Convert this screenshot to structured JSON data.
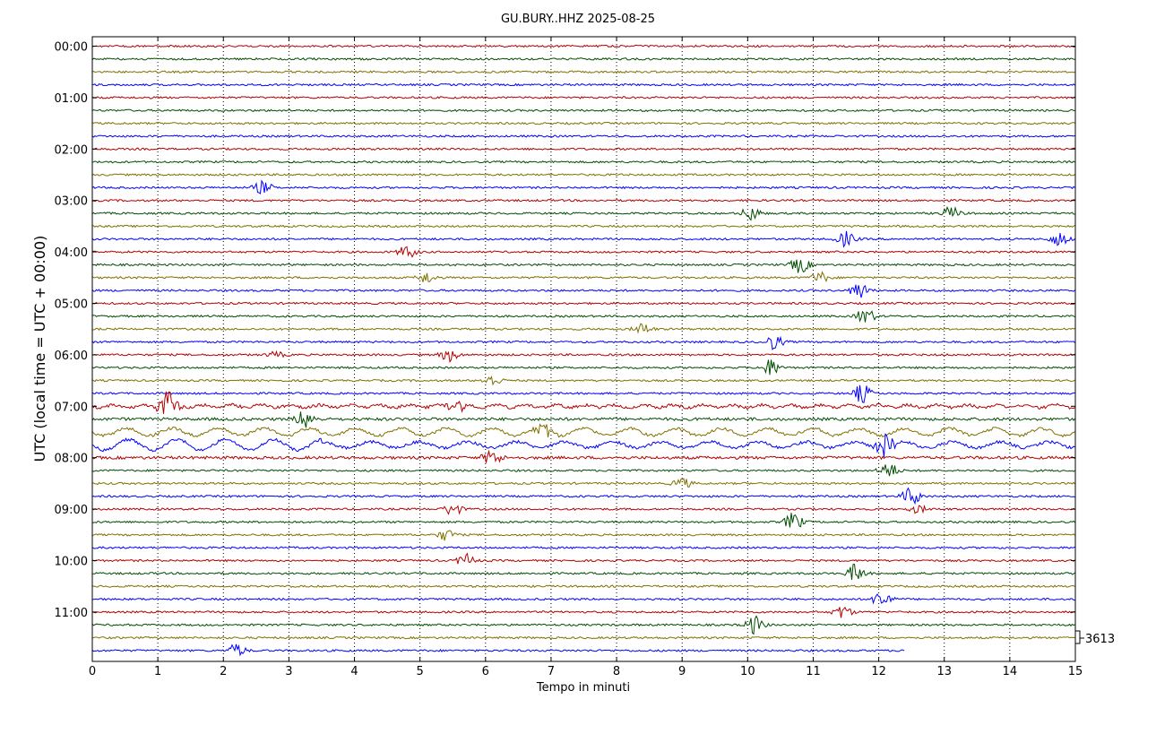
{
  "chart_data": {
    "type": "line",
    "title": "GU.BURY..HHZ 2025-08-25",
    "xlabel": "Tempo in minuti",
    "ylabel": "UTC (local time = UTC + 00:00)",
    "xlim": [
      0,
      15
    ],
    "x_ticks": [
      "0",
      "1",
      "2",
      "3",
      "4",
      "5",
      "6",
      "7",
      "8",
      "9",
      "10",
      "11",
      "12",
      "13",
      "14",
      "15"
    ],
    "y_ticks": [
      "00:00",
      "01:00",
      "02:00",
      "03:00",
      "04:00",
      "05:00",
      "06:00",
      "07:00",
      "08:00",
      "09:00",
      "10:00",
      "11:00"
    ],
    "grid": "vertical-dotted",
    "scale_label": "3613",
    "rows_per_hour": 4,
    "row_minutes": 15,
    "trace_colors": [
      "#b30000",
      "#004d00",
      "#807000",
      "#0000ff"
    ],
    "last_row_end_minute": 12.4,
    "series": [
      {
        "row": 11,
        "events": [
          {
            "t": 2.6,
            "amp": 7
          }
        ]
      },
      {
        "row": 13,
        "events": [
          {
            "t": 10.05,
            "amp": 8
          },
          {
            "t": 13.1,
            "amp": 7
          }
        ]
      },
      {
        "row": 15,
        "events": [
          {
            "t": 11.5,
            "amp": 8
          },
          {
            "t": 14.75,
            "amp": 8
          }
        ]
      },
      {
        "row": 16,
        "events": [
          {
            "t": 4.8,
            "amp": 7
          }
        ]
      },
      {
        "row": 17,
        "events": [
          {
            "t": 10.8,
            "amp": 9
          }
        ]
      },
      {
        "row": 18,
        "events": [
          {
            "t": 5.1,
            "amp": 6
          },
          {
            "t": 11.1,
            "amp": 6
          }
        ]
      },
      {
        "row": 19,
        "events": [
          {
            "t": 11.7,
            "amp": 9
          }
        ]
      },
      {
        "row": 21,
        "events": [
          {
            "t": 11.8,
            "amp": 9
          }
        ]
      },
      {
        "row": 22,
        "events": [
          {
            "t": 8.4,
            "amp": 6
          }
        ]
      },
      {
        "row": 23,
        "events": [
          {
            "t": 10.4,
            "amp": 8
          }
        ]
      },
      {
        "row": 24,
        "events": [
          {
            "t": 5.45,
            "amp": 7
          },
          {
            "t": 2.8,
            "amp": 3
          }
        ]
      },
      {
        "row": 25,
        "events": [
          {
            "t": 10.35,
            "amp": 9
          }
        ]
      },
      {
        "row": 26,
        "events": [
          {
            "t": 6.1,
            "amp": 6
          }
        ]
      },
      {
        "row": 27,
        "events": [
          {
            "t": 11.75,
            "amp": 10
          }
        ]
      },
      {
        "row": 28,
        "events": [
          {
            "t": 1.15,
            "amp": 18
          },
          {
            "t": 5.55,
            "amp": 9
          }
        ]
      },
      {
        "row": 29,
        "events": [
          {
            "t": 3.25,
            "amp": 10
          }
        ]
      },
      {
        "row": 30,
        "events": [
          {
            "t": 6.9,
            "amp": 8
          }
        ]
      },
      {
        "row": 31,
        "events": [
          {
            "t": 12.1,
            "amp": 14
          }
        ]
      },
      {
        "row": 32,
        "events": [
          {
            "t": 6.1,
            "amp": 8
          }
        ]
      },
      {
        "row": 33,
        "events": [
          {
            "t": 12.15,
            "amp": 9
          }
        ]
      },
      {
        "row": 34,
        "events": [
          {
            "t": 9.0,
            "amp": 6
          }
        ]
      },
      {
        "row": 35,
        "events": [
          {
            "t": 12.5,
            "amp": 10
          }
        ]
      },
      {
        "row": 36,
        "events": [
          {
            "t": 5.5,
            "amp": 7
          },
          {
            "t": 12.6,
            "amp": 4
          }
        ]
      },
      {
        "row": 37,
        "events": [
          {
            "t": 10.7,
            "amp": 10
          }
        ]
      },
      {
        "row": 38,
        "events": [
          {
            "t": 5.4,
            "amp": 6
          }
        ]
      },
      {
        "row": 40,
        "events": [
          {
            "t": 5.7,
            "amp": 7
          }
        ]
      },
      {
        "row": 41,
        "events": [
          {
            "t": 11.65,
            "amp": 10
          }
        ]
      },
      {
        "row": 43,
        "events": [
          {
            "t": 12.05,
            "amp": 10
          }
        ]
      },
      {
        "row": 44,
        "events": [
          {
            "t": 11.45,
            "amp": 7
          }
        ]
      },
      {
        "row": 45,
        "events": [
          {
            "t": 10.1,
            "amp": 10
          }
        ]
      },
      {
        "row": 47,
        "events": [
          {
            "t": 2.2,
            "amp": 7
          }
        ]
      }
    ]
  }
}
